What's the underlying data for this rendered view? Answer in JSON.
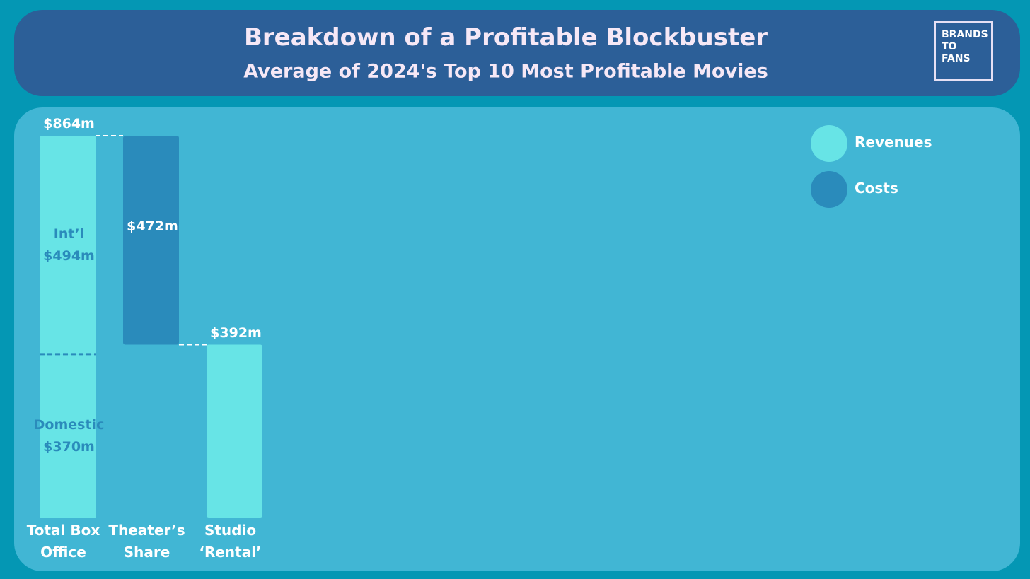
{
  "header": {
    "title": "Breakdown of a Profitable Blockbuster",
    "subtitle": "Average of 2024's Top 10 Most Profitable Movies",
    "logo": [
      "BRANDS",
      "TO",
      "FANS"
    ]
  },
  "chart_data": {
    "type": "waterfall",
    "categories": [
      "Total Box Office",
      "Theater’s Share",
      "Studio ‘Rental’"
    ],
    "series": [
      {
        "name": "Revenues",
        "color": "#67e4e6",
        "values": [
          864,
          null,
          392
        ],
        "value_labels": [
          "$864m",
          null,
          "$392m"
        ]
      },
      {
        "name": "Costs",
        "color": "#2a8bbb",
        "values": [
          null,
          472,
          null
        ],
        "value_labels": [
          null,
          "$472m",
          null
        ]
      }
    ],
    "stack": [
      {
        "name": "Domestic",
        "value": 370,
        "value_label": "$370m"
      },
      {
        "name": "Int’l",
        "value": 494,
        "value_label": "$494m"
      }
    ],
    "legend": "top-right"
  }
}
